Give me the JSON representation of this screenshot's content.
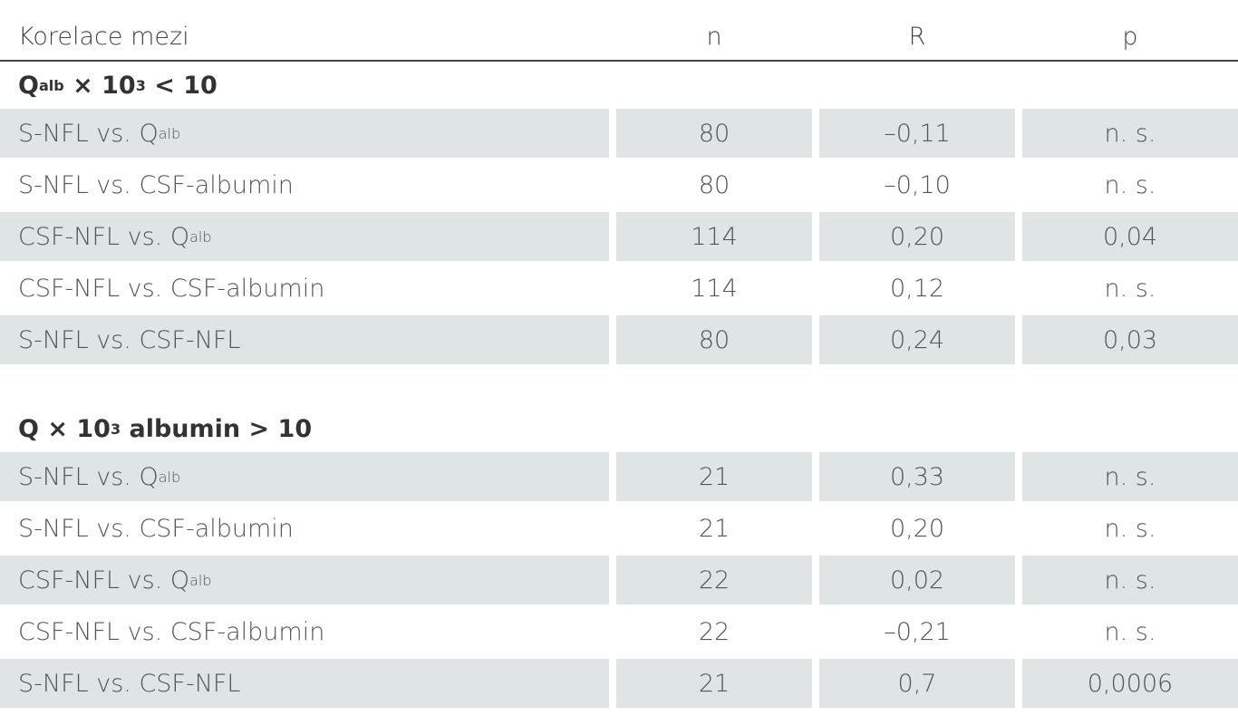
{
  "table": {
    "header": [
      "Korelace mezi",
      "n",
      "R",
      "p"
    ],
    "sections": [
      {
        "title": [
          {
            "text": "Q"
          },
          {
            "sub": "alb"
          },
          {
            "text": " × 10"
          },
          {
            "sup": "3"
          },
          {
            "text": " < 10"
          }
        ],
        "rows": [
          {
            "label": [
              {
                "text": "S-NFL vs. Q"
              },
              {
                "sub": "alb"
              }
            ],
            "cells": [
              "80",
              "–0,11",
              "n. s."
            ]
          },
          {
            "label": [
              {
                "text": "S-NFL vs. CSF-albumin"
              }
            ],
            "cells": [
              "80",
              "–0,10",
              "n. s."
            ]
          },
          {
            "label": [
              {
                "text": "CSF-NFL vs. Q"
              },
              {
                "sub": "alb"
              }
            ],
            "cells": [
              "114",
              "0,20",
              "0,04"
            ]
          },
          {
            "label": [
              {
                "text": "CSF-NFL vs. CSF-albumin"
              }
            ],
            "cells": [
              "114",
              "0,12",
              "n. s."
            ]
          },
          {
            "label": [
              {
                "text": "S-NFL vs. CSF-NFL"
              }
            ],
            "cells": [
              "80",
              "0,24",
              "0,03"
            ]
          }
        ]
      },
      {
        "title": [
          {
            "text": "Q × 10"
          },
          {
            "sup": "3"
          },
          {
            "text": " albumin > 10"
          }
        ],
        "rows": [
          {
            "label": [
              {
                "text": "S-NFL vs. Q"
              },
              {
                "sub": "alb"
              }
            ],
            "cells": [
              "21",
              "0,33",
              "n. s."
            ]
          },
          {
            "label": [
              {
                "text": "S-NFL vs. CSF-albumin"
              }
            ],
            "cells": [
              "21",
              "0,20",
              "n. s."
            ]
          },
          {
            "label": [
              {
                "text": "CSF-NFL vs. Q"
              },
              {
                "sub": "alb"
              }
            ],
            "cells": [
              "22",
              "0,02",
              "n. s."
            ]
          },
          {
            "label": [
              {
                "text": "CSF-NFL vs. CSF-albumin"
              }
            ],
            "cells": [
              "22",
              "–0,21",
              "n. s."
            ]
          },
          {
            "label": [
              {
                "text": "S-NFL vs. CSF-NFL"
              }
            ],
            "cells": [
              "21",
              "0,7",
              "0,0006"
            ]
          }
        ]
      }
    ]
  }
}
